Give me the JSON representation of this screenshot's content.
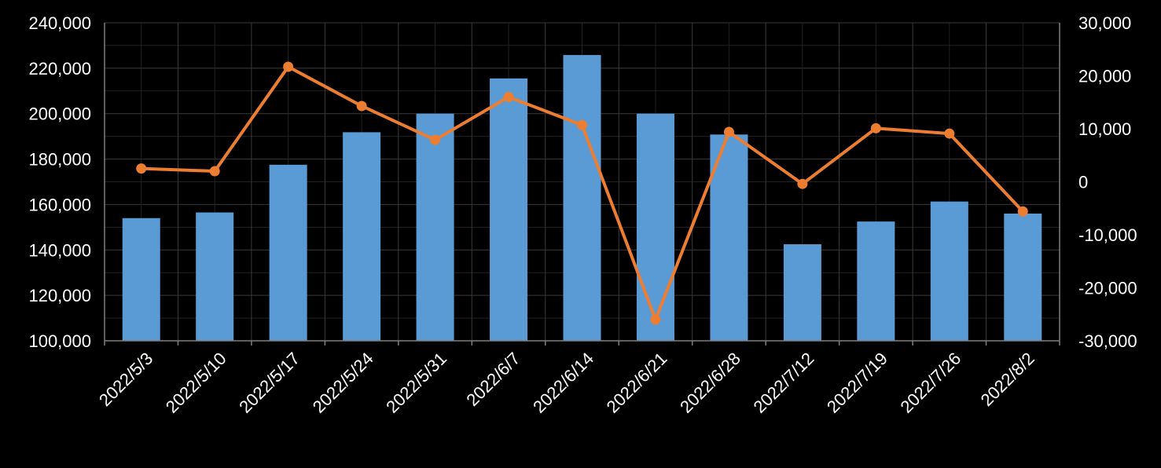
{
  "colors": {
    "background": "#000000",
    "bar": "#5B9BD5",
    "line": "#ED7D31",
    "grid": "#3a3a3a",
    "text": "#FFFFFF"
  },
  "chart_data": {
    "type": "bar",
    "combo": "bar+line",
    "categories": [
      "2022/5/3",
      "2022/5/10",
      "2022/5/17",
      "2022/5/24",
      "2022/5/31",
      "2022/6/7",
      "2022/6/14",
      "2022/6/21",
      "2022/6/28",
      "2022/7/12",
      "2022/7/19",
      "2022/7/26",
      "2022/8/2"
    ],
    "series": [
      {
        "type": "bar",
        "axis": "left",
        "color": "#5B9BD5",
        "values": [
          154000,
          156500,
          177500,
          191800,
          200000,
          215500,
          225800,
          200000,
          190800,
          142500,
          152500,
          161300,
          156000
        ]
      },
      {
        "type": "line",
        "axis": "right",
        "color": "#ED7D31",
        "values": [
          2500,
          2000,
          21700,
          14300,
          7900,
          16000,
          10700,
          -26000,
          9400,
          -400,
          10100,
          9100,
          -5600
        ]
      }
    ],
    "left_axis": {
      "min": 100000,
      "max": 240000,
      "ticks": [
        "100,000",
        "120,000",
        "140,000",
        "160,000",
        "180,000",
        "200,000",
        "220,000",
        "240,000"
      ]
    },
    "right_axis": {
      "min": -30000,
      "max": 30000,
      "ticks": [
        "-30,000",
        "-20,000",
        "-10,000",
        "0",
        "10,000",
        "20,000",
        "30,000"
      ]
    },
    "grid": true,
    "legend": "none"
  }
}
